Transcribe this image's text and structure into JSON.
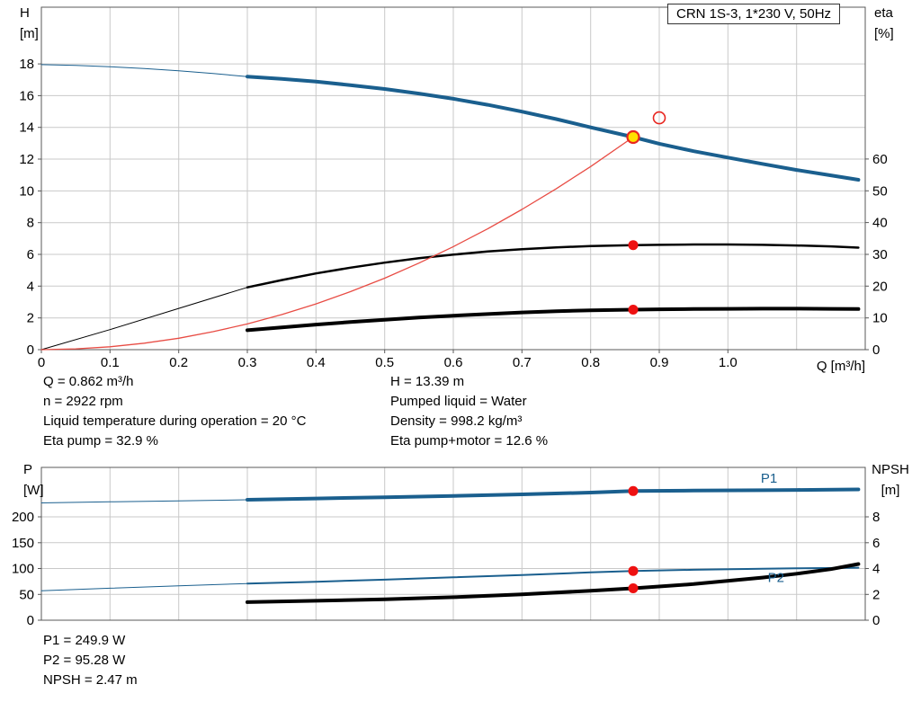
{
  "title_box": "CRN 1S-3, 1*230 V, 50Hz",
  "axis_corner_labels": {
    "top_left": [
      "H",
      "[m]"
    ],
    "top_right": [
      "eta",
      "[%]"
    ],
    "x_label": "Q [m³/h]",
    "bottom_left": [
      "P",
      "[W]"
    ],
    "bottom_right": [
      "NPSH",
      "[m]"
    ]
  },
  "info_top": {
    "left": [
      "Q = 0.862 m³/h",
      "n = 2922 rpm",
      "Liquid temperature during operation = 20 °C",
      "Eta pump = 32.9 %"
    ],
    "right": [
      "H = 13.39 m",
      "Pumped liquid = Water",
      "Density = 998.2 kg/m³",
      "Eta pump+motor = 12.6 %"
    ]
  },
  "info_bottom": [
    "P1 = 249.9 W",
    "P2 = 95.28 W",
    "NPSH = 2.47 m"
  ],
  "colors": {
    "curve_blue": "#1a5f8e",
    "curve_black": "#000000",
    "curve_red": "#e84c44",
    "marker_red": "#ee1111",
    "marker_yellow": "#ffe000",
    "grid": "#c9c9c9",
    "frame": "#595959"
  },
  "chart_data": [
    {
      "id": "chart-top",
      "type": "line",
      "title": "CRN 1S-3, 1*230 V, 50Hz",
      "x_axis": {
        "min": 0,
        "max": 1.2,
        "label": "Q [m³/h]",
        "grid": [
          0.1,
          0.2,
          0.3,
          0.4,
          0.5,
          0.6,
          0.7,
          0.8,
          0.9,
          1.0,
          1.1
        ],
        "labels": [
          {
            "v": 0,
            "t": "0"
          },
          {
            "v": 0.1,
            "t": "0.1"
          },
          {
            "v": 0.2,
            "t": "0.2"
          },
          {
            "v": 0.3,
            "t": "0.3"
          },
          {
            "v": 0.4,
            "t": "0.4"
          },
          {
            "v": 0.5,
            "t": "0.5"
          },
          {
            "v": 0.6,
            "t": "0.6"
          },
          {
            "v": 0.7,
            "t": "0.7"
          },
          {
            "v": 0.8,
            "t": "0.8"
          },
          {
            "v": 0.9,
            "t": "0.9"
          },
          {
            "v": 1.0,
            "t": "1.0"
          }
        ]
      },
      "left_axis": {
        "title": "H [m]",
        "min": 0,
        "max": 21.57,
        "grid": [
          2,
          4,
          6,
          8,
          10,
          12,
          14,
          16,
          18
        ],
        "labels": [
          {
            "v": 0,
            "t": "0"
          },
          {
            "v": 2,
            "t": "2"
          },
          {
            "v": 4,
            "t": "4"
          },
          {
            "v": 6,
            "t": "6"
          },
          {
            "v": 8,
            "t": "8"
          },
          {
            "v": 10,
            "t": "10"
          },
          {
            "v": 12,
            "t": "12"
          },
          {
            "v": 14,
            "t": "14"
          },
          {
            "v": 16,
            "t": "16"
          },
          {
            "v": 18,
            "t": "18"
          }
        ]
      },
      "right_axis": {
        "title": "eta [%]",
        "min": 0,
        "max": 107.8,
        "labels": [
          {
            "v": 0,
            "t": "0"
          },
          {
            "v": 10,
            "t": "10"
          },
          {
            "v": 20,
            "t": "20"
          },
          {
            "v": 30,
            "t": "30"
          },
          {
            "v": 40,
            "t": "40"
          },
          {
            "v": 50,
            "t": "50"
          },
          {
            "v": 60,
            "t": "60"
          }
        ]
      },
      "series": [
        {
          "name": "head-below-min-flow",
          "axis": "left",
          "color": "#1a5f8e",
          "width": 1,
          "points": [
            [
              0,
              17.95
            ],
            [
              0.05,
              17.9
            ],
            [
              0.1,
              17.82
            ],
            [
              0.15,
              17.71
            ],
            [
              0.2,
              17.57
            ],
            [
              0.25,
              17.39
            ],
            [
              0.3,
              17.2
            ]
          ]
        },
        {
          "name": "head-curve",
          "axis": "left",
          "color": "#1a5f8e",
          "width": 4,
          "points": [
            [
              0.3,
              17.2
            ],
            [
              0.35,
              17.05
            ],
            [
              0.4,
              16.88
            ],
            [
              0.45,
              16.66
            ],
            [
              0.5,
              16.42
            ],
            [
              0.55,
              16.13
            ],
            [
              0.6,
              15.8
            ],
            [
              0.65,
              15.42
            ],
            [
              0.7,
              14.99
            ],
            [
              0.75,
              14.52
            ],
            [
              0.8,
              14.0
            ],
            [
              0.862,
              13.39
            ],
            [
              0.9,
              12.97
            ],
            [
              0.95,
              12.5
            ],
            [
              1.0,
              12.1
            ],
            [
              1.05,
              11.7
            ],
            [
              1.1,
              11.32
            ],
            [
              1.15,
              10.98
            ],
            [
              1.19,
              10.7
            ]
          ]
        },
        {
          "name": "eta-pump-below-min-flow",
          "axis": "right",
          "color": "#000000",
          "width": 1,
          "points": [
            [
              0,
              0
            ],
            [
              0.1,
              6.3
            ],
            [
              0.2,
              13.0
            ],
            [
              0.3,
              19.6
            ]
          ]
        },
        {
          "name": "eta-pump-curve",
          "axis": "right",
          "color": "#000000",
          "width": 2.5,
          "points": [
            [
              0.3,
              19.6
            ],
            [
              0.35,
              21.9
            ],
            [
              0.4,
              24.0
            ],
            [
              0.45,
              25.8
            ],
            [
              0.5,
              27.4
            ],
            [
              0.55,
              28.8
            ],
            [
              0.6,
              29.9
            ],
            [
              0.65,
              30.9
            ],
            [
              0.7,
              31.6
            ],
            [
              0.75,
              32.2
            ],
            [
              0.8,
              32.6
            ],
            [
              0.862,
              32.9
            ],
            [
              0.9,
              33.0
            ],
            [
              0.95,
              33.1
            ],
            [
              1.0,
              33.1
            ],
            [
              1.05,
              33.0
            ],
            [
              1.1,
              32.8
            ],
            [
              1.15,
              32.5
            ],
            [
              1.19,
              32.1
            ]
          ]
        },
        {
          "name": "eta-pump-motor-curve",
          "axis": "right",
          "color": "#000000",
          "width": 4,
          "points": [
            [
              0.3,
              6.1
            ],
            [
              0.35,
              7.0
            ],
            [
              0.4,
              7.9
            ],
            [
              0.45,
              8.7
            ],
            [
              0.5,
              9.4
            ],
            [
              0.55,
              10.1
            ],
            [
              0.6,
              10.7
            ],
            [
              0.65,
              11.2
            ],
            [
              0.7,
              11.7
            ],
            [
              0.75,
              12.1
            ],
            [
              0.8,
              12.4
            ],
            [
              0.862,
              12.6
            ],
            [
              0.9,
              12.7
            ],
            [
              0.95,
              12.8
            ],
            [
              1.0,
              12.85
            ],
            [
              1.05,
              12.9
            ],
            [
              1.1,
              12.9
            ],
            [
              1.15,
              12.85
            ],
            [
              1.19,
              12.8
            ]
          ]
        },
        {
          "name": "system-curve",
          "axis": "left",
          "color": "#e84c44",
          "width": 1.3,
          "points": [
            [
              0,
              0
            ],
            [
              0.05,
              0.05
            ],
            [
              0.1,
              0.18
            ],
            [
              0.15,
              0.41
            ],
            [
              0.2,
              0.72
            ],
            [
              0.25,
              1.13
            ],
            [
              0.3,
              1.62
            ],
            [
              0.35,
              2.21
            ],
            [
              0.4,
              2.88
            ],
            [
              0.45,
              3.65
            ],
            [
              0.5,
              4.5
            ],
            [
              0.55,
              5.45
            ],
            [
              0.6,
              6.49
            ],
            [
              0.65,
              7.61
            ],
            [
              0.7,
              8.83
            ],
            [
              0.75,
              10.14
            ],
            [
              0.8,
              11.53
            ],
            [
              0.862,
              13.39
            ]
          ]
        }
      ],
      "markers": [
        {
          "name": "eta-pump-point",
          "x": 0.862,
          "v": 32.9,
          "axis": "right",
          "r": 5.5,
          "fill": "#ee1111",
          "stroke": "none",
          "sw": 0
        },
        {
          "name": "eta-pump-motor-point",
          "x": 0.862,
          "v": 12.6,
          "axis": "right",
          "r": 5.5,
          "fill": "#ee1111",
          "stroke": "none",
          "sw": 0
        },
        {
          "name": "target-duty-point",
          "x": 0.9,
          "v": 14.6,
          "axis": "left",
          "r": 6.5,
          "fill": "none",
          "stroke": "#e8251f",
          "sw": 1.6
        },
        {
          "name": "duty-point",
          "x": 0.862,
          "v": 13.39,
          "axis": "left",
          "r": 6.5,
          "fill": "#ffe000",
          "stroke": "#e8251f",
          "sw": 2.2
        }
      ],
      "labels": []
    },
    {
      "id": "chart-bottom",
      "type": "line",
      "x_axis": {
        "min": 0,
        "max": 1.2,
        "grid": [
          0.1,
          0.2,
          0.3,
          0.4,
          0.5,
          0.6,
          0.7,
          0.8,
          0.9,
          1.0,
          1.1
        ],
        "labels": []
      },
      "left_axis": {
        "title": "P [W]",
        "min": 0,
        "max": 295.7,
        "grid": [
          50,
          100,
          150,
          200
        ],
        "labels": [
          {
            "v": 0,
            "t": "0"
          },
          {
            "v": 50,
            "t": "50"
          },
          {
            "v": 100,
            "t": "100"
          },
          {
            "v": 150,
            "t": "150"
          },
          {
            "v": 200,
            "t": "200"
          }
        ]
      },
      "right_axis": {
        "title": "NPSH [m]",
        "min": 0,
        "max": 11.83,
        "labels": [
          {
            "v": 0,
            "t": "0"
          },
          {
            "v": 2,
            "t": "2"
          },
          {
            "v": 4,
            "t": "4"
          },
          {
            "v": 6,
            "t": "6"
          },
          {
            "v": 8,
            "t": "8"
          }
        ]
      },
      "series": [
        {
          "name": "p1-below-min-flow",
          "axis": "left",
          "color": "#1a5f8e",
          "width": 1,
          "points": [
            [
              0,
              227
            ],
            [
              0.1,
              229
            ],
            [
              0.2,
              231
            ],
            [
              0.3,
              233
            ]
          ]
        },
        {
          "name": "p1-curve",
          "axis": "left",
          "color": "#1a5f8e",
          "width": 4,
          "points": [
            [
              0.3,
              233
            ],
            [
              0.4,
              235.5
            ],
            [
              0.5,
              238
            ],
            [
              0.6,
              240.5
            ],
            [
              0.7,
              243.5
            ],
            [
              0.8,
              247
            ],
            [
              0.862,
              249.9
            ],
            [
              0.95,
              250.8
            ],
            [
              1.05,
              251.6
            ],
            [
              1.1,
              252
            ],
            [
              1.19,
              253
            ]
          ]
        },
        {
          "name": "p2-below-min-flow",
          "axis": "left",
          "color": "#1a5f8e",
          "width": 1,
          "points": [
            [
              0,
              57
            ],
            [
              0.1,
              62
            ],
            [
              0.2,
              66.5
            ],
            [
              0.3,
              71
            ]
          ]
        },
        {
          "name": "p2-curve",
          "axis": "left",
          "color": "#1a5f8e",
          "width": 2,
          "points": [
            [
              0.3,
              71
            ],
            [
              0.4,
              74.5
            ],
            [
              0.5,
              78.5
            ],
            [
              0.6,
              83
            ],
            [
              0.7,
              87.5
            ],
            [
              0.8,
              92.5
            ],
            [
              0.862,
              95.28
            ],
            [
              0.95,
              97.5
            ],
            [
              1.05,
              99.5
            ],
            [
              1.1,
              100.3
            ],
            [
              1.19,
              101.5
            ]
          ]
        },
        {
          "name": "npsh-curve",
          "axis": "right",
          "color": "#000000",
          "width": 4,
          "points": [
            [
              0.3,
              1.4
            ],
            [
              0.4,
              1.5
            ],
            [
              0.5,
              1.62
            ],
            [
              0.6,
              1.78
            ],
            [
              0.7,
              2.0
            ],
            [
              0.8,
              2.28
            ],
            [
              0.862,
              2.47
            ],
            [
              0.95,
              2.8
            ],
            [
              1.05,
              3.3
            ],
            [
              1.1,
              3.6
            ],
            [
              1.15,
              3.95
            ],
            [
              1.19,
              4.35
            ]
          ]
        }
      ],
      "markers": [
        {
          "name": "p1-point",
          "x": 0.862,
          "v": 249.9,
          "axis": "left",
          "r": 5.5,
          "fill": "#ee1111",
          "stroke": "none",
          "sw": 0
        },
        {
          "name": "p2-point",
          "x": 0.862,
          "v": 95.28,
          "axis": "left",
          "r": 5.5,
          "fill": "#ee1111",
          "stroke": "none",
          "sw": 0
        },
        {
          "name": "npsh-point",
          "x": 0.862,
          "v": 2.47,
          "axis": "right",
          "r": 5.5,
          "fill": "#ee1111",
          "stroke": "none",
          "sw": 0
        }
      ],
      "labels": [
        {
          "text": "P1",
          "x": 1.06,
          "v": 266,
          "axis": "left",
          "color": "#1a5f8e"
        },
        {
          "text": "P2",
          "x": 1.07,
          "v": 74,
          "axis": "left",
          "color": "#1a5f8e"
        }
      ]
    }
  ]
}
